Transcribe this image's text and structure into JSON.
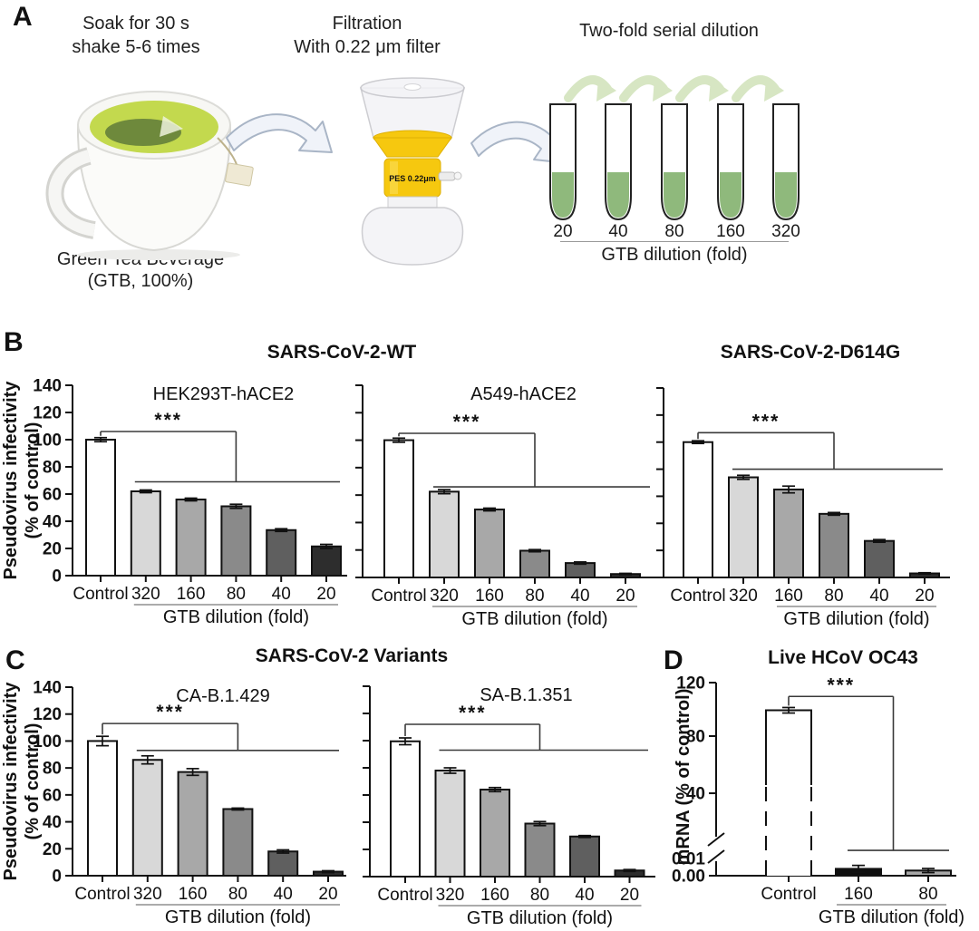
{
  "panel_a": {
    "label": "A",
    "step1_line1": "Soak for 30 s",
    "step1_line2": "shake 5-6 times",
    "step2_line1": "Filtration",
    "step2_line2": "With 0.22 μm filter",
    "step3_title": "Two-fold serial dilution",
    "mug_caption_line1": "Green Tea Beverage",
    "mug_caption_line2": "(GTB, 100%)",
    "filter_label": "PES 0.22μm",
    "tube_labels": [
      "20",
      "40",
      "80",
      "160",
      "320"
    ],
    "dilution_axis_label": "GTB dilution (fold)"
  },
  "panel_b": {
    "label": "B",
    "title_left": "SARS-CoV-2-WT",
    "title_right": "SARS-CoV-2-D614G",
    "y_axis_label_line1": "Pseudovirus infectivity",
    "y_axis_label_line2": "(% of control)"
  },
  "panel_c": {
    "label": "C",
    "title": "SARS-CoV-2 Variants",
    "y_axis_label_line1": "Pseudovirus infectivity",
    "y_axis_label_line2": "(% of control)"
  },
  "panel_d": {
    "label": "D",
    "title": "Live HCoV OC43",
    "y_axis_label": "mRNA (% of control)"
  },
  "colors": {
    "tea": "#c3d94e",
    "tube_green": "#8fb97c",
    "arc_green": "#d7e6c3",
    "filter_yellow": "#f6c80f",
    "arrow_fill": "#f0f3f9",
    "arrow_stroke": "#a9b5c6"
  },
  "chart_data": [
    {
      "id": "b_hek",
      "type": "bar",
      "subtitle": "HEK293T-hACE2",
      "ylabel": "Pseudovirus infectivity (% of control)",
      "categories": [
        "Control",
        "320",
        "160",
        "80",
        "40",
        "20"
      ],
      "values": [
        100,
        62,
        56,
        51,
        33.5,
        21.5
      ],
      "errors": [
        1.5,
        1,
        1,
        1.5,
        1,
        1.5
      ],
      "bar_colors": [
        "#ffffff",
        "#d8d8d8",
        "#a8a8a8",
        "#8a8a8a",
        "#5f5f5f",
        "#2d2d2d"
      ],
      "ylim": [
        0,
        140
      ],
      "yticks": [
        0,
        20,
        40,
        60,
        80,
        100,
        120,
        140
      ],
      "ytick_labels_visible": true,
      "xlabel": "GTB dilution (fold)",
      "xlabel_from_index": 1,
      "significance": {
        "label": "***",
        "top_value": 106,
        "drop_category_index": 3,
        "group_line_value": 69,
        "group_from_index": 1
      }
    },
    {
      "id": "b_a549",
      "type": "bar",
      "subtitle": "A549-hACE2",
      "ylabel": "Pseudovirus infectivity (% of control)",
      "categories": [
        "Control",
        "320",
        "160",
        "80",
        "40",
        "20"
      ],
      "values": [
        100,
        62.5,
        49.5,
        19.5,
        10.5,
        2.5
      ],
      "errors": [
        1.5,
        1.5,
        1,
        0.8,
        0.8,
        0.5
      ],
      "bar_colors": [
        "#ffffff",
        "#d8d8d8",
        "#a8a8a8",
        "#8a8a8a",
        "#5f5f5f",
        "#2d2d2d"
      ],
      "ylim": [
        0,
        140
      ],
      "yticks": [
        0,
        20,
        40,
        60,
        80,
        100,
        120,
        140
      ],
      "ytick_labels_visible": false,
      "xlabel": "GTB dilution (fold)",
      "xlabel_from_index": 1,
      "significance": {
        "label": "***",
        "top_value": 105,
        "drop_category_index": 3,
        "group_line_value": 66,
        "group_from_index": 1
      }
    },
    {
      "id": "b_d614g",
      "type": "bar",
      "subtitle": "",
      "ylabel": "Pseudovirus infectivity (% of control)",
      "categories": [
        "Control",
        "320",
        "160",
        "80",
        "40",
        "20"
      ],
      "values": [
        100,
        74,
        65,
        47,
        27,
        3
      ],
      "errors": [
        1,
        1.5,
        2.5,
        1,
        1,
        0.5
      ],
      "bar_colors": [
        "#ffffff",
        "#d8d8d8",
        "#a8a8a8",
        "#8a8a8a",
        "#5f5f5f",
        "#2d2d2d"
      ],
      "ylim": [
        0,
        140
      ],
      "yticks": [
        0,
        20,
        40,
        60,
        80,
        100,
        120,
        140
      ],
      "ytick_labels_visible": false,
      "xlabel": "GTB dilution (fold)",
      "xlabel_from_index": 2,
      "significance": {
        "label": "***",
        "top_value": 107,
        "drop_category_index": 3,
        "group_line_value": 80,
        "group_from_index": 1
      }
    },
    {
      "id": "c_ca",
      "type": "bar",
      "subtitle": "CA-B.1.429",
      "ylabel": "Pseudovirus infectivity (% of control)",
      "categories": [
        "Control",
        "320",
        "160",
        "80",
        "40",
        "20"
      ],
      "values": [
        100,
        86,
        77,
        49.5,
        18,
        3
      ],
      "errors": [
        3.5,
        3,
        2.5,
        0.7,
        1.2,
        0.7
      ],
      "bar_colors": [
        "#ffffff",
        "#d8d8d8",
        "#a8a8a8",
        "#8a8a8a",
        "#5f5f5f",
        "#2d2d2d"
      ],
      "ylim": [
        0,
        140
      ],
      "yticks": [
        0,
        20,
        40,
        60,
        80,
        100,
        120,
        140
      ],
      "ytick_labels_visible": true,
      "xlabel": "GTB dilution (fold)",
      "xlabel_from_index": 1,
      "significance": {
        "label": "***",
        "top_value": 113,
        "drop_category_index": 3,
        "group_line_value": 93,
        "group_from_index": 1
      }
    },
    {
      "id": "c_sa",
      "type": "bar",
      "subtitle": "SA-B.1.351",
      "ylabel": "Pseudovirus infectivity (% of control)",
      "categories": [
        "Control",
        "320",
        "160",
        "80",
        "40",
        "20"
      ],
      "values": [
        99.5,
        78,
        64,
        39,
        29.5,
        4.5
      ],
      "errors": [
        2.5,
        2,
        1.5,
        1.5,
        0.7,
        0.7
      ],
      "bar_colors": [
        "#ffffff",
        "#d8d8d8",
        "#a8a8a8",
        "#8a8a8a",
        "#5f5f5f",
        "#2d2d2d"
      ],
      "ylim": [
        0,
        140
      ],
      "yticks": [
        0,
        20,
        40,
        60,
        80,
        100,
        120,
        140
      ],
      "ytick_labels_visible": false,
      "xlabel": "GTB dilution (fold)",
      "xlabel_from_index": 1,
      "significance": {
        "label": "***",
        "top_value": 112,
        "drop_category_index": 3,
        "group_line_value": 93,
        "group_from_index": 1
      }
    },
    {
      "id": "d_oc43",
      "type": "bar",
      "broken_axis": true,
      "subtitle": "",
      "ylabel": "mRNA (% of control)",
      "categories": [
        "Control",
        "160",
        "80"
      ],
      "values": [
        100,
        0.004,
        0.003
      ],
      "errors": [
        2,
        0.002,
        0.0012
      ],
      "bar_colors": [
        "#ffffff",
        "#0f0f0f",
        "#a8a8a8"
      ],
      "ylim": [
        0,
        120
      ],
      "yticks": [
        "0.00",
        "0.01",
        "40",
        "80",
        "120"
      ],
      "ytick_labels_visible": true,
      "xlabel": "GTB dilution (fold)",
      "xlabel_from_index": 1,
      "significance": {
        "label": "***",
        "top_value": 110,
        "group_line_frac": 0.131,
        "group_from_index": 1
      }
    }
  ]
}
